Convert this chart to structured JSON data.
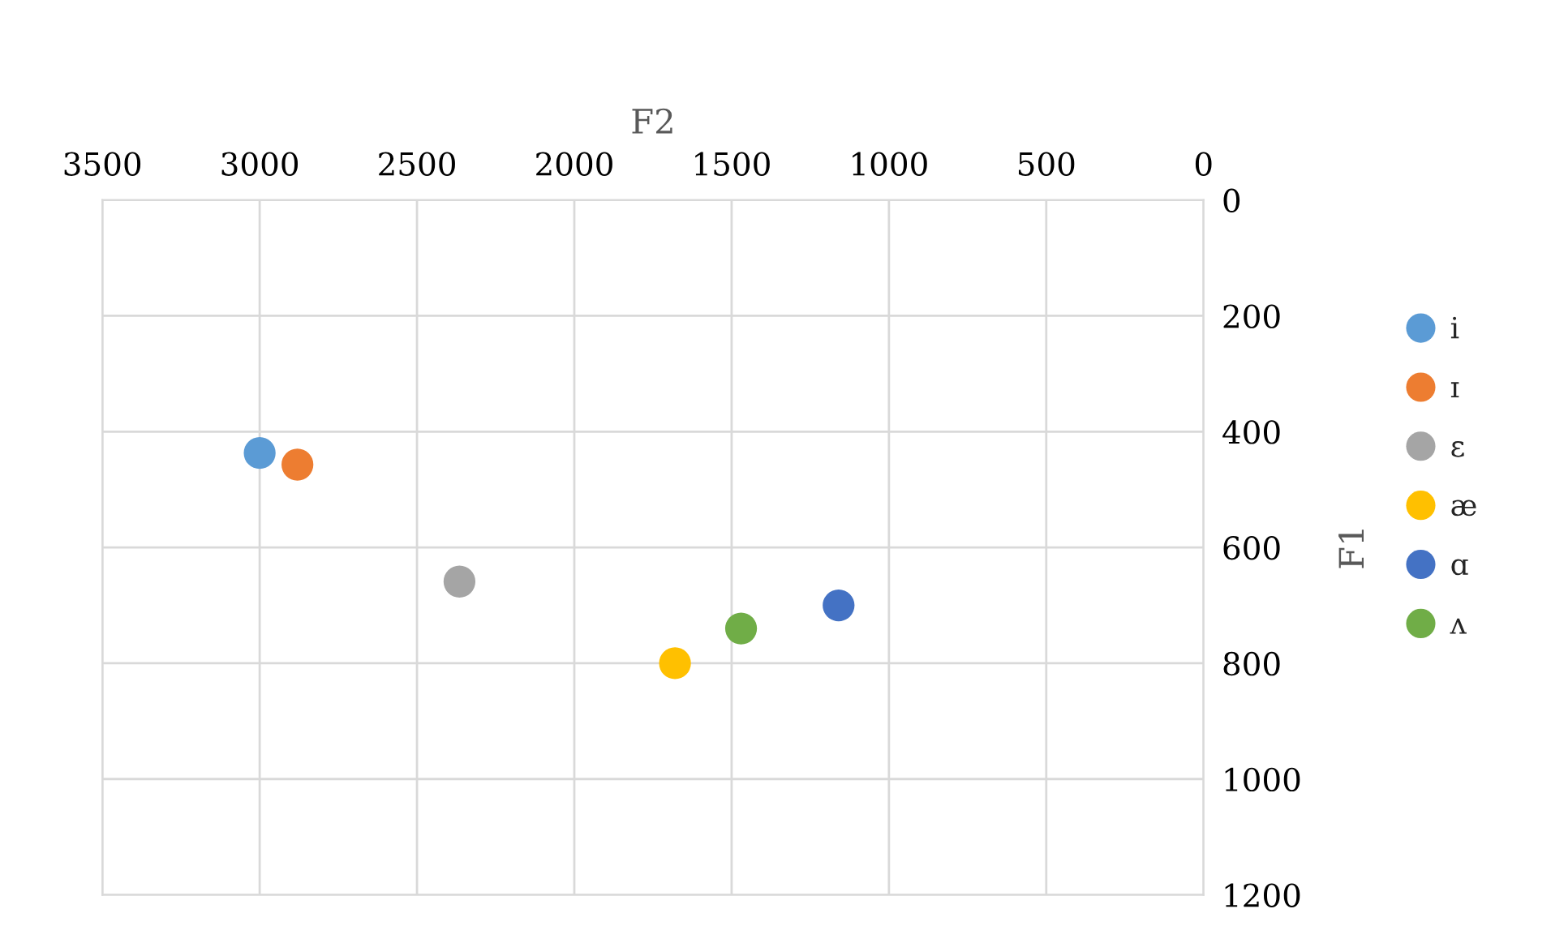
{
  "chart_data": {
    "type": "scatter",
    "xlabel": "F2",
    "ylabel": "F1",
    "xlim": [
      3500,
      0
    ],
    "xticks": [
      3500,
      3000,
      2500,
      2000,
      1500,
      1000,
      500,
      0
    ],
    "ylim": [
      1200,
      0
    ],
    "yticks": [
      0,
      200,
      400,
      600,
      800,
      1000,
      1200
    ],
    "grid": true,
    "legend": "right",
    "marker": "circle",
    "series": [
      {
        "name": "i",
        "color": "#5b9bd5",
        "x": [
          3000
        ],
        "values": [
          437
        ]
      },
      {
        "name": "ɪ",
        "color": "#ed7d31",
        "x": [
          2880
        ],
        "values": [
          457
        ]
      },
      {
        "name": "ɛ",
        "color": "#a5a5a5",
        "x": [
          2365
        ],
        "values": [
          659
        ]
      },
      {
        "name": "æ",
        "color": "#ffc000",
        "x": [
          1680
        ],
        "values": [
          800
        ]
      },
      {
        "name": "ɑ",
        "color": "#4472c4",
        "x": [
          1160
        ],
        "values": [
          700
        ]
      },
      {
        "name": "ʌ",
        "color": "#70ad47",
        "x": [
          1470
        ],
        "values": [
          740
        ]
      }
    ]
  }
}
